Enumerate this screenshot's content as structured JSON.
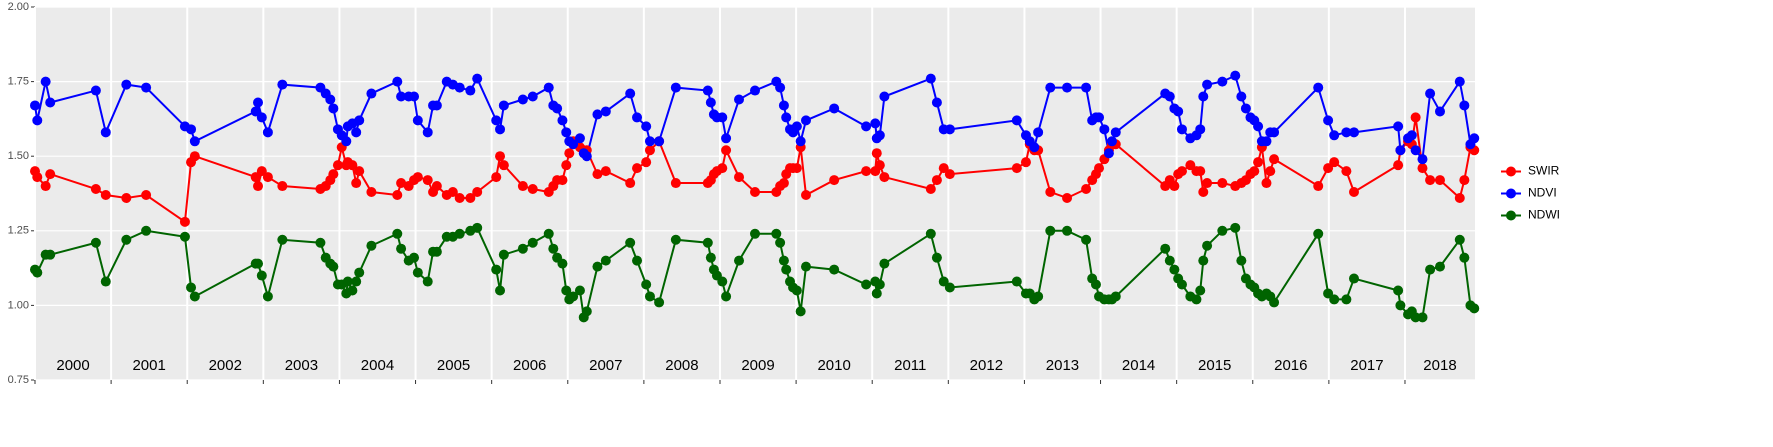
{
  "chart_data": {
    "type": "line",
    "x": [
      2000.0,
      2000.03,
      2000.14,
      2000.2,
      2000.8,
      2000.93,
      2001.2,
      2001.46,
      2001.97,
      2002.05,
      2002.1,
      2002.9,
      2002.93,
      2002.98,
      2003.06,
      2003.25,
      2003.75,
      2003.82,
      2003.88,
      2003.92,
      2003.98,
      2004.03,
      2004.09,
      2004.11,
      2004.17,
      2004.22,
      2004.26,
      2004.42,
      2004.76,
      2004.81,
      2004.91,
      2004.98,
      2005.03,
      2005.16,
      2005.23,
      2005.28,
      2005.41,
      2005.49,
      2005.58,
      2005.72,
      2005.81,
      2006.06,
      2006.11,
      2006.16,
      2006.41,
      2006.54,
      2006.75,
      2006.81,
      2006.86,
      2006.93,
      2006.98,
      2007.02,
      2007.07,
      2007.16,
      2007.21,
      2007.25,
      2007.39,
      2007.5,
      2007.82,
      2007.91,
      2008.03,
      2008.08,
      2008.2,
      2008.42,
      2008.84,
      2008.88,
      2008.92,
      2008.96,
      2009.03,
      2009.08,
      2009.25,
      2009.46,
      2009.74,
      2009.79,
      2009.84,
      2009.87,
      2009.92,
      2009.96,
      2010.01,
      2010.06,
      2010.13,
      2010.5,
      2010.92,
      2011.04,
      2011.06,
      2011.1,
      2011.16,
      2011.77,
      2011.85,
      2011.94,
      2012.02,
      2012.9,
      2013.02,
      2013.07,
      2013.13,
      2013.18,
      2013.34,
      2013.56,
      2013.81,
      2013.89,
      2013.94,
      2013.98,
      2014.05,
      2014.11,
      2014.15,
      2014.2,
      2014.85,
      2014.91,
      2014.97,
      2015.02,
      2015.07,
      2015.18,
      2015.26,
      2015.31,
      2015.35,
      2015.4,
      2015.6,
      2015.77,
      2015.85,
      2015.91,
      2015.97,
      2016.02,
      2016.07,
      2016.12,
      2016.18,
      2016.23,
      2016.28,
      2016.86,
      2016.99,
      2017.07,
      2017.23,
      2017.33,
      2017.91,
      2017.94,
      2018.04,
      2018.09,
      2018.14,
      2018.23,
      2018.33,
      2018.46,
      2018.72,
      2018.78,
      2018.86,
      2018.91
    ],
    "series": [
      {
        "name": "SWIR",
        "color": "#ff0000",
        "values": [
          1.45,
          1.43,
          1.4,
          1.44,
          1.39,
          1.37,
          1.36,
          1.37,
          1.28,
          1.48,
          1.5,
          1.43,
          1.4,
          1.45,
          1.43,
          1.4,
          1.39,
          1.4,
          1.42,
          1.44,
          1.47,
          1.53,
          1.47,
          1.48,
          1.47,
          1.41,
          1.45,
          1.38,
          1.37,
          1.41,
          1.4,
          1.42,
          1.43,
          1.42,
          1.38,
          1.4,
          1.37,
          1.38,
          1.36,
          1.36,
          1.38,
          1.43,
          1.5,
          1.47,
          1.4,
          1.39,
          1.38,
          1.4,
          1.42,
          1.42,
          1.47,
          1.51,
          1.55,
          1.53,
          1.52,
          1.52,
          1.44,
          1.45,
          1.41,
          1.46,
          1.48,
          1.52,
          1.55,
          1.41,
          1.41,
          1.42,
          1.44,
          1.45,
          1.46,
          1.52,
          1.43,
          1.38,
          1.38,
          1.4,
          1.41,
          1.44,
          1.46,
          1.46,
          1.46,
          1.53,
          1.37,
          1.42,
          1.45,
          1.45,
          1.51,
          1.47,
          1.43,
          1.39,
          1.42,
          1.46,
          1.44,
          1.46,
          1.48,
          1.54,
          1.52,
          1.52,
          1.38,
          1.36,
          1.39,
          1.42,
          1.44,
          1.46,
          1.49,
          1.52,
          1.54,
          1.54,
          1.4,
          1.42,
          1.4,
          1.44,
          1.45,
          1.47,
          1.45,
          1.45,
          1.38,
          1.41,
          1.41,
          1.4,
          1.41,
          1.42,
          1.44,
          1.45,
          1.48,
          1.53,
          1.41,
          1.45,
          1.49,
          1.4,
          1.46,
          1.48,
          1.45,
          1.38,
          1.47,
          1.52,
          1.55,
          1.54,
          1.63,
          1.46,
          1.42,
          1.42,
          1.36,
          1.42,
          1.53,
          1.52
        ]
      },
      {
        "name": "NDVI",
        "color": "#0000ff",
        "values": [
          1.67,
          1.62,
          1.75,
          1.68,
          1.72,
          1.58,
          1.74,
          1.73,
          1.6,
          1.59,
          1.55,
          1.65,
          1.68,
          1.63,
          1.58,
          1.74,
          1.73,
          1.71,
          1.69,
          1.66,
          1.59,
          1.57,
          1.55,
          1.6,
          1.61,
          1.58,
          1.62,
          1.71,
          1.75,
          1.7,
          1.7,
          1.7,
          1.62,
          1.58,
          1.67,
          1.67,
          1.75,
          1.74,
          1.73,
          1.72,
          1.76,
          1.62,
          1.59,
          1.67,
          1.69,
          1.7,
          1.73,
          1.67,
          1.66,
          1.62,
          1.58,
          1.55,
          1.54,
          1.56,
          1.51,
          1.5,
          1.64,
          1.65,
          1.71,
          1.63,
          1.6,
          1.55,
          1.55,
          1.73,
          1.72,
          1.68,
          1.64,
          1.63,
          1.63,
          1.56,
          1.69,
          1.72,
          1.75,
          1.73,
          1.67,
          1.63,
          1.59,
          1.58,
          1.6,
          1.55,
          1.62,
          1.66,
          1.6,
          1.61,
          1.56,
          1.57,
          1.7,
          1.76,
          1.68,
          1.59,
          1.59,
          1.62,
          1.57,
          1.55,
          1.53,
          1.58,
          1.73,
          1.73,
          1.73,
          1.62,
          1.63,
          1.63,
          1.59,
          1.51,
          1.55,
          1.58,
          1.71,
          1.7,
          1.66,
          1.65,
          1.59,
          1.56,
          1.57,
          1.59,
          1.7,
          1.74,
          1.75,
          1.77,
          1.7,
          1.66,
          1.63,
          1.62,
          1.6,
          1.55,
          1.55,
          1.58,
          1.58,
          1.73,
          1.62,
          1.57,
          1.58,
          1.58,
          1.6,
          1.52,
          1.56,
          1.57,
          1.52,
          1.49,
          1.71,
          1.65,
          1.75,
          1.67,
          1.54,
          1.56
        ]
      },
      {
        "name": "NDWI",
        "color": "#006400",
        "values": [
          1.12,
          1.11,
          1.17,
          1.17,
          1.21,
          1.08,
          1.22,
          1.25,
          1.23,
          1.06,
          1.03,
          1.14,
          1.14,
          1.1,
          1.03,
          1.22,
          1.21,
          1.16,
          1.14,
          1.13,
          1.07,
          1.07,
          1.04,
          1.08,
          1.05,
          1.08,
          1.11,
          1.2,
          1.24,
          1.19,
          1.15,
          1.16,
          1.11,
          1.08,
          1.18,
          1.18,
          1.23,
          1.23,
          1.24,
          1.25,
          1.26,
          1.12,
          1.05,
          1.17,
          1.19,
          1.21,
          1.24,
          1.19,
          1.16,
          1.14,
          1.05,
          1.02,
          1.03,
          1.05,
          0.96,
          0.98,
          1.13,
          1.15,
          1.21,
          1.15,
          1.07,
          1.03,
          1.01,
          1.22,
          1.21,
          1.16,
          1.12,
          1.1,
          1.08,
          1.03,
          1.15,
          1.24,
          1.24,
          1.21,
          1.15,
          1.12,
          1.08,
          1.06,
          1.05,
          0.98,
          1.13,
          1.12,
          1.07,
          1.08,
          1.04,
          1.07,
          1.14,
          1.24,
          1.16,
          1.08,
          1.06,
          1.08,
          1.04,
          1.04,
          1.02,
          1.03,
          1.25,
          1.25,
          1.22,
          1.09,
          1.07,
          1.03,
          1.02,
          1.02,
          1.02,
          1.03,
          1.19,
          1.15,
          1.12,
          1.09,
          1.07,
          1.03,
          1.02,
          1.05,
          1.15,
          1.2,
          1.25,
          1.26,
          1.15,
          1.09,
          1.07,
          1.06,
          1.04,
          1.03,
          1.04,
          1.03,
          1.01,
          1.24,
          1.04,
          1.02,
          1.02,
          1.09,
          1.05,
          1.0,
          0.97,
          0.98,
          0.96,
          0.96,
          1.12,
          1.13,
          1.22,
          1.16,
          1.0,
          0.99
        ]
      }
    ],
    "xlim": [
      2000,
      2018.92
    ],
    "xticks": [
      2000,
      2001,
      2002,
      2003,
      2004,
      2005,
      2006,
      2007,
      2008,
      2009,
      2010,
      2011,
      2012,
      2013,
      2014,
      2015,
      2016,
      2017,
      2018
    ],
    "ylim": [
      0.75,
      2
    ],
    "yticks": [
      {
        "value": 0.75,
        "label": "0.75"
      },
      {
        "value": 1,
        "label": "1.00"
      },
      1.25,
      {
        "value": 1.5,
        "label": "1.50"
      },
      1.75,
      {
        "value": 2,
        "label": "2.00"
      }
    ],
    "grid": true,
    "legend": "right"
  }
}
